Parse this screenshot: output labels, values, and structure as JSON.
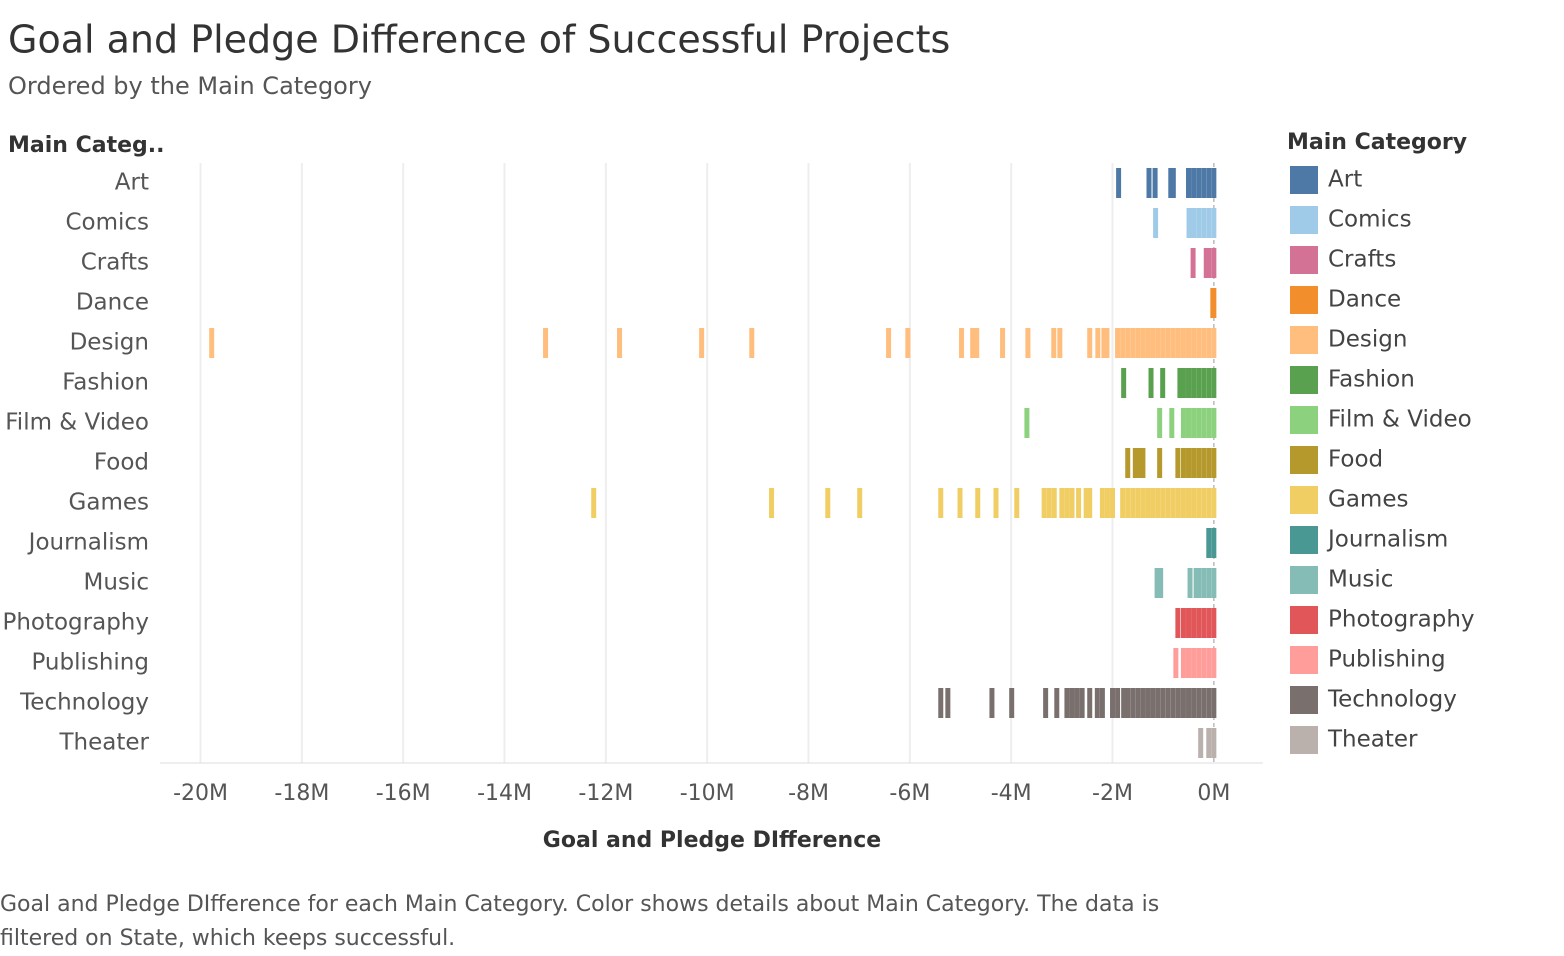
{
  "chart_data": {
    "type": "strip",
    "title": "Goal and Pledge Difference of Successful Projects",
    "subtitle": "Ordered by the Main Category",
    "y_header": "Main Categ..",
    "x_label": "Goal and Pledge DIfference",
    "legend_title": "Main Category",
    "legend": "right",
    "grid": true,
    "caption": "Goal and Pledge DIfference for each Main Category.  Color shows details about Main Category. The data is filtered on State, which keeps successful.",
    "xlim": [
      -20.8,
      0.97
    ],
    "xticks": [
      {
        "value": -20,
        "label": "-20M"
      },
      {
        "value": -18,
        "label": "-18M"
      },
      {
        "value": -16,
        "label": "-16M"
      },
      {
        "value": -14,
        "label": "-14M"
      },
      {
        "value": -12,
        "label": "-12M"
      },
      {
        "value": -10,
        "label": "-10M"
      },
      {
        "value": -8,
        "label": "-8M"
      },
      {
        "value": -6,
        "label": "-6M"
      },
      {
        "value": -4,
        "label": "-4M"
      },
      {
        "value": -2,
        "label": "-2M"
      },
      {
        "value": 0,
        "label": "0M"
      }
    ],
    "series": [
      {
        "name": "Art",
        "color": "#4e79a7",
        "values": [
          -1.88,
          -1.28,
          -1.16,
          -0.85,
          -0.8,
          -0.5,
          -0.4,
          -0.3,
          -0.2,
          -0.1,
          0
        ]
      },
      {
        "name": "Comics",
        "color": "#a0cbe8",
        "values": [
          -1.15,
          -0.49,
          -0.4,
          -0.3,
          -0.2,
          -0.1,
          0
        ]
      },
      {
        "name": "Crafts",
        "color": "#d37295",
        "values": [
          -0.41,
          -0.15,
          -0.1,
          0
        ]
      },
      {
        "name": "Dance",
        "color": "#f28e2b",
        "values": [
          -0.02,
          0
        ]
      },
      {
        "name": "Design",
        "color": "#ffbe7d",
        "values": [
          -19.78,
          -13.19,
          -11.73,
          -10.11,
          -9.12,
          -6.42,
          -6.04,
          -4.98,
          -4.76,
          -4.68,
          -4.17,
          -3.67,
          -3.16,
          -3.04,
          -2.45,
          -2.29,
          -2.17,
          -2.11,
          -1.9,
          -1.8,
          -1.7,
          -1.6,
          -1.5,
          -1.4,
          -1.3,
          -1.2,
          -1.1,
          -1.0,
          -0.9,
          -0.8,
          -0.7,
          -0.6,
          -0.5,
          -0.4,
          -0.3,
          -0.2,
          -0.1,
          0
        ]
      },
      {
        "name": "Fashion",
        "color": "#59a14f",
        "values": [
          -1.78,
          -1.24,
          -1.01,
          -0.67,
          -0.6,
          -0.5,
          -0.4,
          -0.3,
          -0.2,
          -0.1,
          0
        ]
      },
      {
        "name": "Film & Video",
        "color": "#8cd17d",
        "values": [
          -3.69,
          -1.07,
          -0.83,
          -0.6,
          -0.5,
          -0.4,
          -0.3,
          -0.2,
          -0.1,
          0
        ]
      },
      {
        "name": "Food",
        "color": "#b6992d",
        "values": [
          -1.7,
          -1.55,
          -1.5,
          -1.45,
          -1.4,
          -1.07,
          -0.71,
          -0.6,
          -0.5,
          -0.4,
          -0.3,
          -0.2,
          -0.1,
          0
        ]
      },
      {
        "name": "Games",
        "color": "#f1ce63",
        "values": [
          -12.24,
          -8.73,
          -7.62,
          -6.99,
          -5.39,
          -5.01,
          -4.66,
          -4.3,
          -3.89,
          -3.35,
          -3.25,
          -3.15,
          -3.0,
          -2.9,
          -2.8,
          -2.67,
          -2.52,
          -2.45,
          -2.2,
          -2.1,
          -2.0,
          -1.8,
          -1.7,
          -1.6,
          -1.5,
          -1.4,
          -1.3,
          -1.2,
          -1.1,
          -1.0,
          -0.9,
          -0.8,
          -0.7,
          -0.6,
          -0.5,
          -0.4,
          -0.3,
          -0.2,
          -0.1,
          0
        ]
      },
      {
        "name": "Journalism",
        "color": "#499894",
        "values": [
          -0.1,
          0
        ]
      },
      {
        "name": "Music",
        "color": "#86bcb6",
        "values": [
          -1.12,
          -1.05,
          -0.47,
          -0.35,
          -0.3,
          -0.2,
          -0.1,
          0
        ]
      },
      {
        "name": "Photography",
        "color": "#e15759",
        "values": [
          -0.71,
          -0.6,
          -0.5,
          -0.4,
          -0.3,
          -0.2,
          -0.1,
          0
        ]
      },
      {
        "name": "Publishing",
        "color": "#ff9d9a",
        "values": [
          -0.75,
          -0.6,
          -0.5,
          -0.4,
          -0.3,
          -0.2,
          -0.1,
          0
        ]
      },
      {
        "name": "Technology",
        "color": "#79706e",
        "values": [
          -5.39,
          -5.25,
          -4.38,
          -3.99,
          -3.32,
          -3.1,
          -2.9,
          -2.8,
          -2.7,
          -2.6,
          -2.45,
          -2.3,
          -2.2,
          -2.0,
          -1.9,
          -1.78,
          -1.7,
          -1.6,
          -1.5,
          -1.4,
          -1.3,
          -1.2,
          -1.1,
          -1.0,
          -0.9,
          -0.8,
          -0.7,
          -0.6,
          -0.5,
          -0.4,
          -0.3,
          -0.2,
          -0.1,
          0
        ]
      },
      {
        "name": "Theater",
        "color": "#bab0ac",
        "values": [
          -0.26,
          -0.1,
          0
        ]
      }
    ]
  }
}
